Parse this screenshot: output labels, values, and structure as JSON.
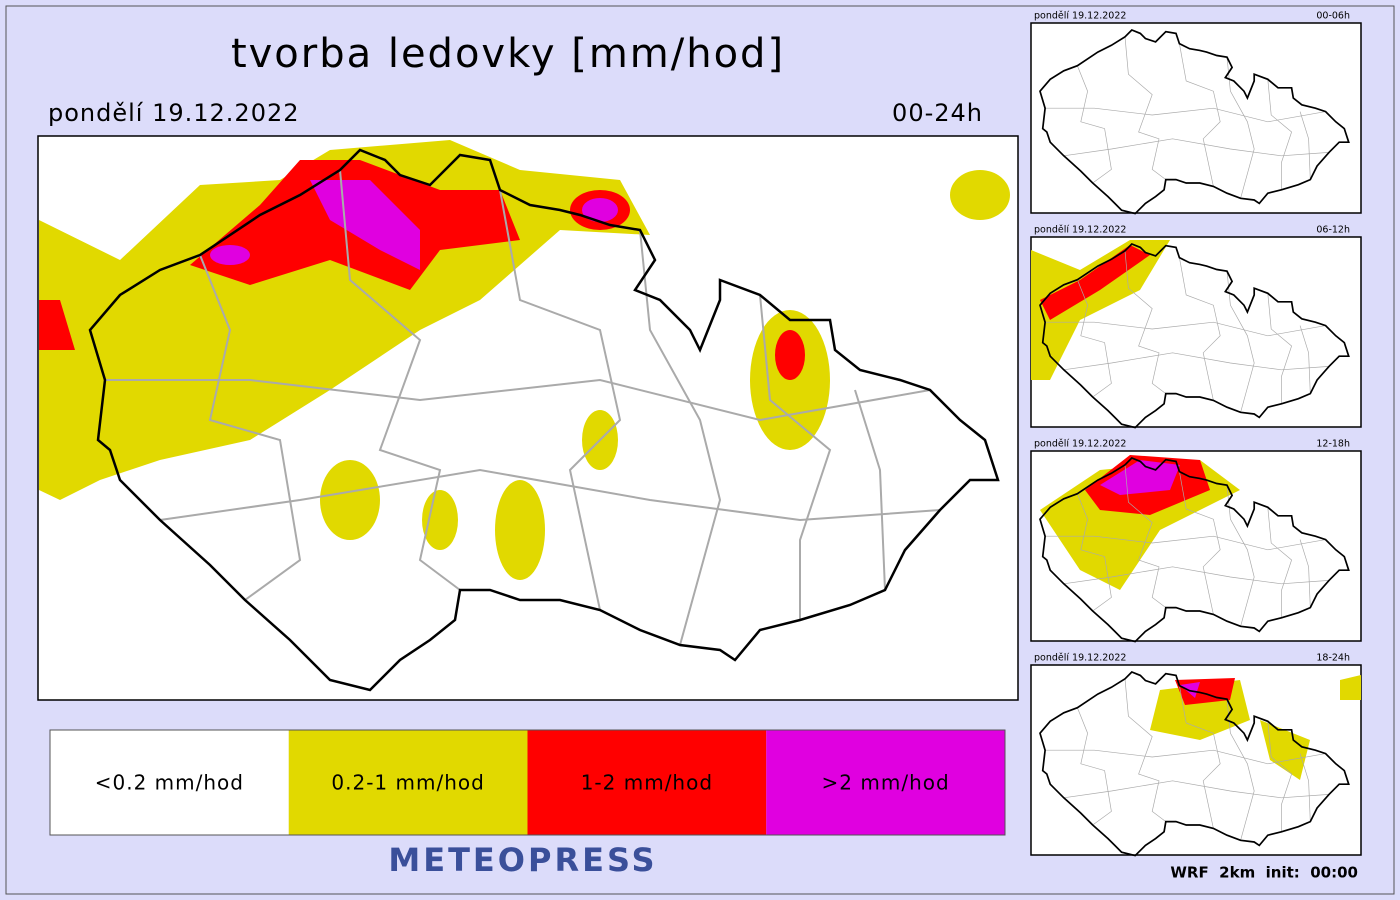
{
  "header": {
    "title": "tvorba ledovky [mm/hod]",
    "date": "pondělí 19.12.2022",
    "period": "00-24h"
  },
  "legend": [
    {
      "label": "<0.2 mm/hod",
      "color": "#ffffff"
    },
    {
      "label": "0.2-1 mm/hod",
      "color": "#e1d900"
    },
    {
      "label": "1-2 mm/hod",
      "color": "#ff0000"
    },
    {
      "label": ">2 mm/hod",
      "color": "#e000e0"
    }
  ],
  "brand": "METEOPRESS",
  "thumbnails": [
    {
      "date": "pondělí 19.12.2022",
      "period": "00-06h"
    },
    {
      "date": "pondělí 19.12.2022",
      "period": "06-12h"
    },
    {
      "date": "pondělí 19.12.2022",
      "period": "12-18h"
    },
    {
      "date": "pondělí 19.12.2022",
      "period": "18-24h"
    }
  ],
  "footer": "WRF  2km  init:  00:00"
}
